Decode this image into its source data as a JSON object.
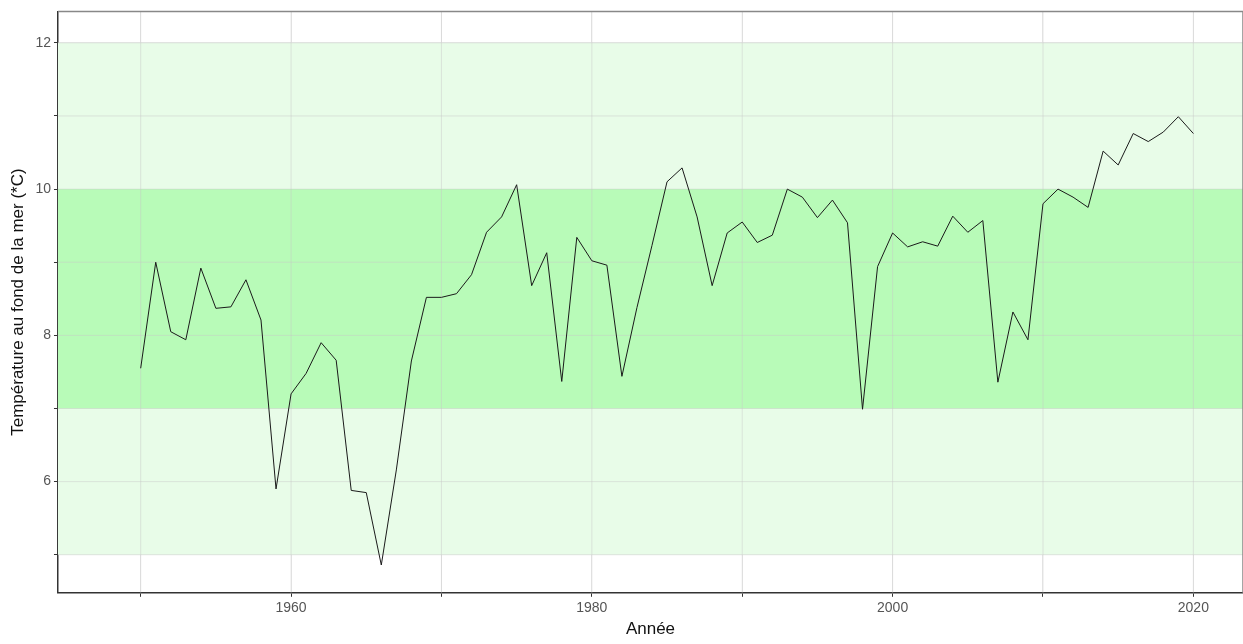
{
  "chart_data": {
    "type": "line",
    "xlabel": "Année",
    "ylabel": "Température au fond de la mer (*C)",
    "x": [
      1950,
      1951,
      1952,
      1953,
      1954,
      1955,
      1956,
      1957,
      1958,
      1959,
      1960,
      1961,
      1962,
      1963,
      1964,
      1965,
      1966,
      1967,
      1968,
      1969,
      1970,
      1971,
      1972,
      1973,
      1974,
      1975,
      1976,
      1977,
      1978,
      1979,
      1980,
      1981,
      1982,
      1983,
      1984,
      1985,
      1986,
      1987,
      1988,
      1989,
      1990,
      1991,
      1992,
      1993,
      1994,
      1995,
      1996,
      1997,
      1998,
      1999,
      2000,
      2001,
      2002,
      2003,
      2004,
      2005,
      2006,
      2007,
      2008,
      2009,
      2010,
      2011,
      2012,
      2013,
      2014,
      2015,
      2016,
      2017,
      2018,
      2019,
      2020
    ],
    "series": [
      {
        "color": "#1a1a1a",
        "values": [
          7.55,
          9.0,
          8.05,
          7.94,
          8.92,
          8.37,
          8.39,
          8.76,
          8.21,
          5.9,
          7.2,
          7.48,
          7.9,
          7.66,
          5.88,
          5.85,
          4.86,
          6.16,
          7.65,
          8.52,
          8.52,
          8.57,
          8.83,
          9.41,
          9.62,
          10.06,
          8.68,
          9.13,
          7.37,
          9.34,
          9.02,
          8.96,
          7.44,
          8.38,
          9.23,
          10.1,
          10.29,
          9.62,
          8.68,
          9.4,
          9.55,
          9.27,
          9.37,
          10.0,
          9.89,
          9.61,
          9.85,
          9.54,
          6.99,
          8.94,
          9.4,
          9.21,
          9.28,
          9.22,
          9.63,
          9.41,
          9.57,
          7.36,
          8.32,
          7.94,
          9.8,
          10.0,
          9.89,
          9.75,
          10.52,
          10.33,
          10.76,
          10.65,
          10.78,
          10.99,
          10.76
        ]
      }
    ],
    "xlim": [
      1944.5,
      2023.3
    ],
    "xticks": [
      {
        "value": 1950,
        "label": null
      },
      1960,
      {
        "value": 1970,
        "label": null
      },
      1980,
      {
        "value": 1990,
        "label": null
      },
      2000,
      {
        "value": 2010,
        "label": null
      },
      2020
    ],
    "ylim": [
      4.48,
      12.43
    ],
    "yticks": [
      {
        "value": 5,
        "label": null
      },
      6,
      {
        "value": 7,
        "label": null
      },
      8,
      {
        "value": 9,
        "label": null
      },
      10,
      {
        "value": 11,
        "label": null
      },
      12
    ],
    "bands": [
      {
        "axis": "y",
        "from": 5,
        "to": 12,
        "color": "#e8fce8"
      },
      {
        "axis": "y",
        "from": 7,
        "to": 10,
        "color": "#b8fbb8"
      }
    ],
    "grid": true,
    "legend": false,
    "marker": "none",
    "line_style": "solid"
  }
}
